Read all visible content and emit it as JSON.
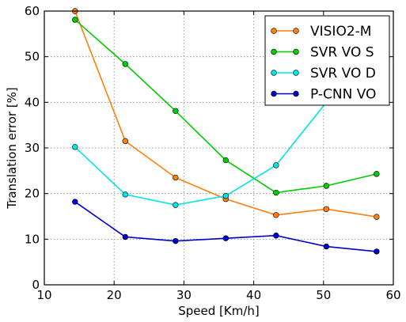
{
  "chart_data": {
    "type": "line",
    "xlabel": "Speed [Km/h]",
    "ylabel": "Translation error [%]",
    "xlim": [
      10,
      60
    ],
    "ylim": [
      0,
      60
    ],
    "xticks": [
      10,
      20,
      30,
      40,
      50,
      60
    ],
    "yticks": [
      0,
      10,
      20,
      30,
      40,
      50,
      60
    ],
    "grid": true,
    "legend_position": "top-right",
    "x": [
      14.4,
      21.6,
      28.8,
      36.0,
      43.2,
      50.4,
      57.6
    ],
    "series": [
      {
        "name": "VISIO2-M",
        "color": "#ff7f0e",
        "values": [
          60.0,
          31.5,
          23.5,
          18.8,
          15.3,
          16.6,
          14.9
        ]
      },
      {
        "name": "SVR VO S",
        "color": "#00cc00",
        "values": [
          58.1,
          48.4,
          38.1,
          27.3,
          20.2,
          21.7,
          24.3
        ]
      },
      {
        "name": "SVR VO D",
        "color": "#00e5e5",
        "values": [
          30.2,
          19.8,
          17.5,
          19.5,
          26.2,
          40.0,
          null
        ]
      },
      {
        "name": "P-CNN VO",
        "color": "#0000cc",
        "values": [
          18.2,
          10.5,
          9.6,
          10.2,
          10.8,
          8.4,
          7.3
        ]
      }
    ]
  }
}
